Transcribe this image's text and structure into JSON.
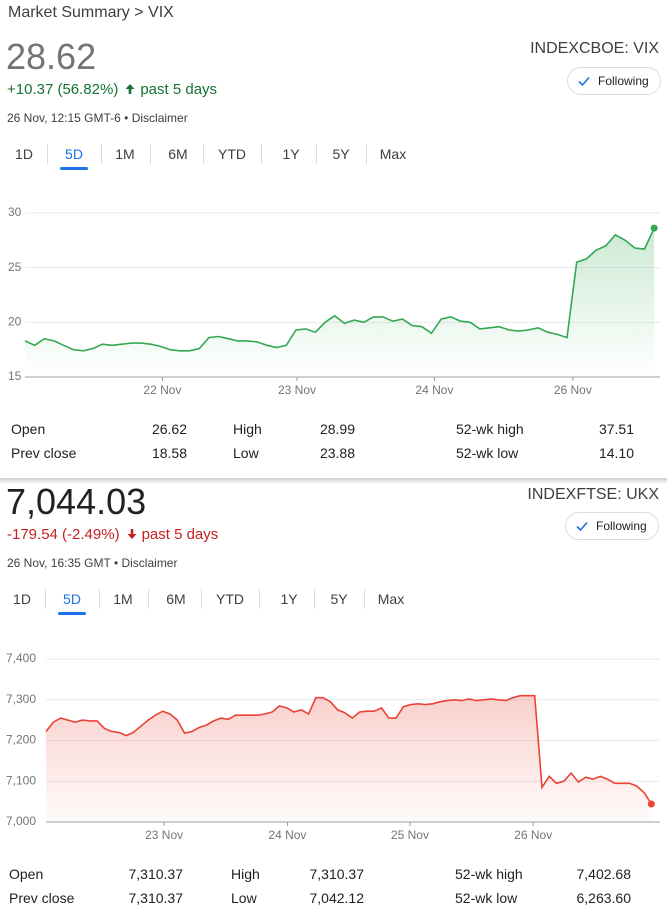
{
  "cards": [
    {
      "breadcrumb": "Market Summary > VIX",
      "price": "28.62",
      "change": "+10.37 (56.82%)",
      "period": "past 5 days",
      "timestamp": "26 Nov, 12:15 GMT-6 • Disclaimer",
      "exchange": "INDEXCBOE: VIX",
      "follow": "Following",
      "tabs": [
        "1D",
        "5D",
        "1M",
        "6M",
        "YTD",
        "1Y",
        "5Y",
        "Max"
      ],
      "stats": [
        [
          "Open",
          "26.62",
          "High",
          "28.99",
          "52-wk high",
          "37.51"
        ],
        [
          "Prev close",
          "18.58",
          "Low",
          "23.88",
          "52-wk low",
          "14.10"
        ]
      ]
    },
    {
      "price": "7,044.03",
      "change": "-179.54 (-2.49%)",
      "period": "past 5 days",
      "timestamp": "26 Nov, 16:35 GMT • Disclaimer",
      "exchange": "INDEXFTSE: UKX",
      "follow": "Following",
      "tabs": [
        "1D",
        "5D",
        "1M",
        "6M",
        "YTD",
        "1Y",
        "5Y",
        "Max"
      ],
      "stats": [
        [
          "Open",
          "7,310.37",
          "High",
          "7,310.37",
          "52-wk high",
          "7,402.68"
        ],
        [
          "Prev close",
          "7,310.37",
          "Low",
          "7,042.12",
          "52-wk low",
          "6,263.60"
        ]
      ]
    }
  ],
  "chart_data": [
    {
      "type": "line",
      "color": "#34a853",
      "x": [
        0,
        1,
        2,
        3,
        4,
        5,
        6,
        7,
        8,
        9,
        10,
        11,
        12,
        13,
        14,
        15,
        16,
        17,
        18,
        19,
        20,
        21,
        22,
        23,
        24,
        25,
        26,
        27,
        28,
        29,
        30,
        31,
        32,
        33,
        34,
        35,
        36,
        37,
        38,
        39,
        40,
        41,
        42,
        43,
        44,
        45,
        46,
        47,
        48,
        49,
        50,
        51,
        52,
        53,
        54,
        55,
        56,
        57,
        58,
        59,
        60,
        61,
        62,
        63,
        64,
        65
      ],
      "values": [
        18.3,
        17.9,
        18.5,
        18.3,
        17.9,
        17.5,
        17.4,
        17.6,
        18.0,
        17.9,
        18.0,
        18.1,
        18.1,
        18.0,
        17.8,
        17.5,
        17.4,
        17.4,
        17.6,
        18.6,
        18.7,
        18.5,
        18.3,
        18.3,
        18.2,
        17.9,
        17.7,
        17.9,
        19.3,
        19.4,
        19.1,
        20.0,
        20.6,
        19.9,
        20.2,
        20.0,
        20.5,
        20.5,
        20.1,
        20.3,
        19.7,
        19.6,
        19.0,
        20.3,
        20.5,
        20.1,
        20.0,
        19.4,
        19.5,
        19.6,
        19.3,
        19.2,
        19.3,
        19.5,
        19.1,
        18.9,
        18.6,
        25.5,
        25.8,
        26.6,
        27.0,
        28.0,
        27.5,
        26.8,
        26.7,
        28.62
      ],
      "xlim": [
        0,
        65.5
      ],
      "xticks": [
        {
          "value": 14.2,
          "label": "22 Nov"
        },
        {
          "value": 28.1,
          "label": "23 Nov"
        },
        {
          "value": 42.3,
          "label": "24 Nov"
        },
        {
          "value": 56.6,
          "label": "26 Nov"
        }
      ],
      "ylim": [
        15,
        30
      ],
      "yticks": [
        15,
        20,
        25,
        30
      ],
      "grid": true
    },
    {
      "type": "line",
      "color": "#ea4335",
      "x": [
        0,
        1,
        2,
        3,
        4,
        5,
        6,
        7,
        8,
        9,
        10,
        11,
        12,
        13,
        14,
        15,
        16,
        17,
        18,
        19,
        20,
        21,
        22,
        23,
        24,
        25,
        26,
        27,
        28,
        29,
        30,
        31,
        32,
        33,
        34,
        35,
        36,
        37,
        38,
        39,
        40,
        41,
        42,
        43,
        44,
        45,
        46,
        47,
        48,
        49,
        50,
        51,
        52,
        53,
        54,
        55,
        56,
        57,
        58,
        59,
        60,
        61,
        62,
        63,
        64,
        65,
        66,
        67,
        68,
        69,
        70,
        71,
        72,
        73,
        74,
        75,
        76,
        77,
        78,
        79,
        80,
        81,
        82,
        83
      ],
      "values": [
        7222,
        7245,
        7255,
        7250,
        7245,
        7250,
        7248,
        7248,
        7230,
        7222,
        7220,
        7212,
        7220,
        7235,
        7250,
        7262,
        7272,
        7265,
        7250,
        7218,
        7222,
        7232,
        7238,
        7248,
        7255,
        7252,
        7262,
        7262,
        7262,
        7262,
        7265,
        7270,
        7285,
        7280,
        7270,
        7275,
        7265,
        7305,
        7305,
        7295,
        7275,
        7268,
        7255,
        7270,
        7272,
        7272,
        7280,
        7255,
        7255,
        7283,
        7288,
        7290,
        7288,
        7290,
        7295,
        7298,
        7300,
        7298,
        7302,
        7298,
        7300,
        7302,
        7300,
        7298,
        7305,
        7310,
        7310,
        7310,
        7085,
        7112,
        7095,
        7100,
        7120,
        7098,
        7110,
        7105,
        7112,
        7105,
        7095,
        7095,
        7095,
        7088,
        7072,
        7044.03
      ],
      "xlim": [
        0,
        83.5
      ],
      "xticks": [
        {
          "value": 16.2,
          "label": "23 Nov"
        },
        {
          "value": 33.1,
          "label": "24 Nov"
        },
        {
          "value": 49.9,
          "label": "25 Nov"
        },
        {
          "value": 66.8,
          "label": "26 Nov"
        }
      ],
      "ylim": [
        7000,
        7400
      ],
      "yticks": [
        {
          "value": 7000,
          "label": "7,000"
        },
        {
          "value": 7100,
          "label": "7,100"
        },
        {
          "value": 7200,
          "label": "7,200"
        },
        {
          "value": 7300,
          "label": "7,300"
        },
        {
          "value": 7400,
          "label": "7,400"
        }
      ],
      "grid": true
    }
  ]
}
